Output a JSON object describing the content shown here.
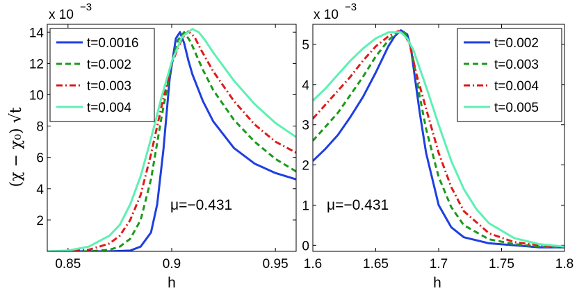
{
  "chart_data": [
    {
      "type": "line",
      "title": "",
      "xlabel": "h",
      "ylabel": "(χ − χ₀) √t",
      "y_multiplier": "x 10",
      "y_exponent": "−3",
      "xlim": [
        0.84,
        0.96
      ],
      "ylim": [
        0,
        14.5
      ],
      "xticks": [
        0.85,
        0.9,
        0.95
      ],
      "xtick_labels": [
        "0.85",
        "0.9",
        "0.95"
      ],
      "yticks": [
        2,
        4,
        6,
        8,
        10,
        12,
        14
      ],
      "ytick_labels": [
        "2",
        "4",
        "6",
        "8",
        "10",
        "12",
        "14"
      ],
      "annotation": "μ=−0.431",
      "legend_position": "top-left",
      "series": [
        {
          "name": "t=0.0016",
          "color": "#1f3fe0",
          "dash": "solid",
          "x": [
            0.84,
            0.87,
            0.88,
            0.885,
            0.89,
            0.893,
            0.896,
            0.899,
            0.902,
            0.904,
            0.906,
            0.908,
            0.91,
            0.915,
            0.92,
            0.93,
            0.94,
            0.95,
            0.96
          ],
          "y": [
            0,
            0,
            0.05,
            0.3,
            1.2,
            3.0,
            6.5,
            11.0,
            13.6,
            14.0,
            13.3,
            12.2,
            11.3,
            9.6,
            8.3,
            6.6,
            5.6,
            5.0,
            4.6
          ]
        },
        {
          "name": "t=0.002",
          "color": "#1a9a1a",
          "dash": "8,5",
          "x": [
            0.84,
            0.86,
            0.87,
            0.875,
            0.88,
            0.885,
            0.89,
            0.895,
            0.9,
            0.903,
            0.906,
            0.909,
            0.912,
            0.915,
            0.92,
            0.93,
            0.94,
            0.95,
            0.96
          ],
          "y": [
            0,
            0,
            0.1,
            0.3,
            0.8,
            2.0,
            4.6,
            8.5,
            12.0,
            13.5,
            14.0,
            13.4,
            12.5,
            11.6,
            10.3,
            8.4,
            7.0,
            5.9,
            5.1
          ]
        },
        {
          "name": "t=0.003",
          "color": "#e01a1a",
          "dash": "9,4,2,4",
          "x": [
            0.84,
            0.85,
            0.86,
            0.87,
            0.875,
            0.88,
            0.885,
            0.89,
            0.895,
            0.9,
            0.905,
            0.908,
            0.911,
            0.914,
            0.92,
            0.93,
            0.94,
            0.95,
            0.96
          ],
          "y": [
            0,
            0.02,
            0.1,
            0.5,
            1.0,
            2.0,
            3.6,
            6.2,
            9.2,
            12.0,
            13.6,
            14.05,
            13.7,
            12.9,
            11.5,
            9.6,
            8.1,
            7.0,
            6.3
          ]
        },
        {
          "name": "t=0.004",
          "color": "#5ef0b4",
          "dash": "solid",
          "x": [
            0.84,
            0.85,
            0.86,
            0.87,
            0.875,
            0.88,
            0.885,
            0.89,
            0.895,
            0.9,
            0.905,
            0.91,
            0.913,
            0.916,
            0.92,
            0.93,
            0.94,
            0.95,
            0.96
          ],
          "y": [
            0,
            0.05,
            0.3,
            1.0,
            1.7,
            3.0,
            4.8,
            7.2,
            9.8,
            12.1,
            13.7,
            14.2,
            14.0,
            13.5,
            12.7,
            10.9,
            9.4,
            8.2,
            7.3
          ]
        }
      ]
    },
    {
      "type": "line",
      "title": "",
      "xlabel": "h",
      "ylabel": "",
      "y_multiplier": "x 10",
      "y_exponent": "−3",
      "xlim": [
        1.6,
        1.8
      ],
      "ylim": [
        -0.15,
        5.5
      ],
      "xticks": [
        1.6,
        1.65,
        1.7,
        1.75,
        1.8
      ],
      "xtick_labels": [
        "1.6",
        "1.65",
        "1.7",
        "1.75",
        "1.8"
      ],
      "yticks": [
        0,
        1,
        2,
        3,
        4,
        5
      ],
      "ytick_labels": [
        "0",
        "1",
        "2",
        "3",
        "4",
        "5"
      ],
      "annotation": "μ=−0.431",
      "legend_position": "top-right",
      "series": [
        {
          "name": "t=0.002",
          "color": "#1f3fe0",
          "dash": "solid",
          "x": [
            1.6,
            1.61,
            1.62,
            1.63,
            1.64,
            1.65,
            1.66,
            1.665,
            1.67,
            1.675,
            1.678,
            1.681,
            1.685,
            1.69,
            1.7,
            1.71,
            1.72,
            1.74,
            1.76,
            1.78,
            1.8
          ],
          "y": [
            2.1,
            2.4,
            2.75,
            3.2,
            3.7,
            4.3,
            4.95,
            5.2,
            5.35,
            5.25,
            4.9,
            4.2,
            3.3,
            2.3,
            1.0,
            0.45,
            0.2,
            0.05,
            0.0,
            -0.05,
            -0.05
          ]
        },
        {
          "name": "t=0.003",
          "color": "#1a9a1a",
          "dash": "8,5",
          "x": [
            1.6,
            1.61,
            1.62,
            1.63,
            1.64,
            1.65,
            1.66,
            1.667,
            1.672,
            1.676,
            1.68,
            1.685,
            1.69,
            1.7,
            1.71,
            1.72,
            1.74,
            1.76,
            1.78,
            1.8
          ],
          "y": [
            2.6,
            2.95,
            3.3,
            3.75,
            4.2,
            4.7,
            5.1,
            5.3,
            5.33,
            5.15,
            4.6,
            3.7,
            2.9,
            1.7,
            0.95,
            0.5,
            0.15,
            0.03,
            -0.03,
            -0.05
          ]
        },
        {
          "name": "t=0.004",
          "color": "#e01a1a",
          "dash": "9,4,2,4",
          "x": [
            1.6,
            1.61,
            1.62,
            1.63,
            1.64,
            1.65,
            1.66,
            1.668,
            1.673,
            1.677,
            1.682,
            1.69,
            1.7,
            1.71,
            1.72,
            1.74,
            1.76,
            1.78,
            1.8
          ],
          "y": [
            3.15,
            3.5,
            3.85,
            4.2,
            4.6,
            4.95,
            5.2,
            5.33,
            5.25,
            5.0,
            4.3,
            3.4,
            2.3,
            1.45,
            0.85,
            0.3,
            0.08,
            0.0,
            -0.04
          ]
        },
        {
          "name": "t=0.005",
          "color": "#5ef0b4",
          "dash": "solid",
          "x": [
            1.6,
            1.61,
            1.62,
            1.63,
            1.64,
            1.65,
            1.66,
            1.67,
            1.675,
            1.68,
            1.69,
            1.7,
            1.71,
            1.72,
            1.73,
            1.74,
            1.76,
            1.78,
            1.8
          ],
          "y": [
            3.6,
            3.9,
            4.25,
            4.6,
            4.9,
            5.15,
            5.3,
            5.3,
            5.15,
            4.85,
            3.95,
            3.0,
            2.1,
            1.4,
            0.9,
            0.55,
            0.18,
            0.03,
            -0.03
          ]
        }
      ]
    }
  ]
}
